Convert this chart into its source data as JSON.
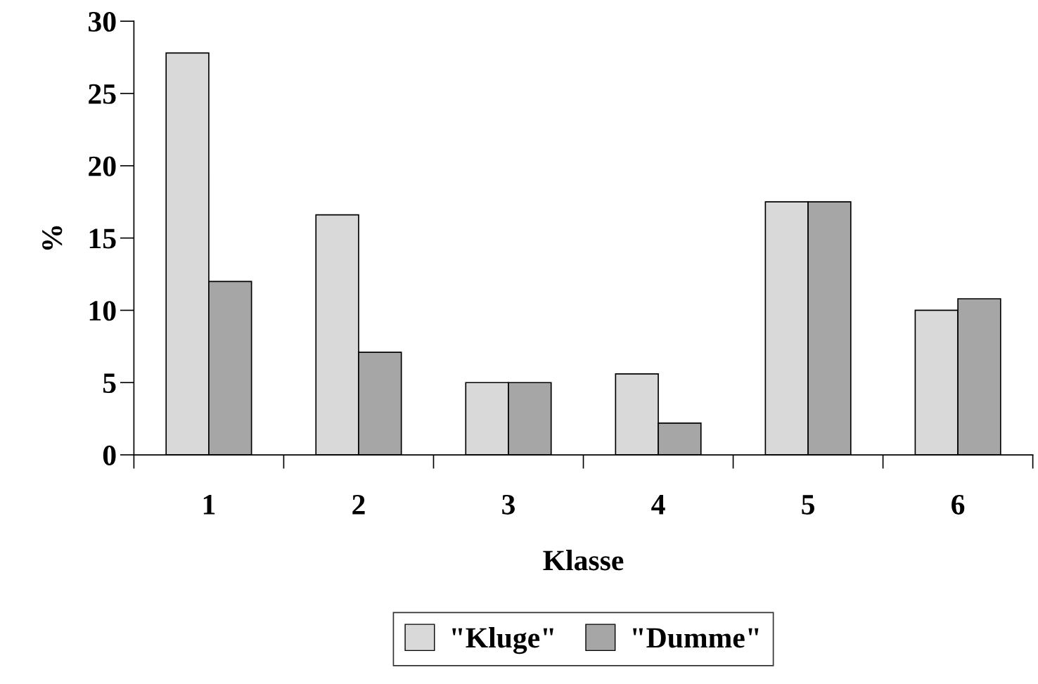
{
  "chart_data": {
    "type": "bar",
    "xlabel": "Klasse",
    "ylabel": "%",
    "categories": [
      "1",
      "2",
      "3",
      "4",
      "5",
      "6"
    ],
    "series": [
      {
        "name": "\"Kluge\"",
        "color": "#d9d9d9",
        "values": [
          27.8,
          16.6,
          5.0,
          5.6,
          17.5,
          10.0
        ]
      },
      {
        "name": "\"Dumme\"",
        "color": "#a6a6a6",
        "values": [
          12.0,
          7.1,
          5.0,
          2.2,
          17.5,
          10.8
        ]
      }
    ],
    "ylim": [
      0,
      30
    ],
    "yticks": [
      0,
      5,
      10,
      15,
      20,
      25,
      30
    ],
    "grid": false,
    "legend": "bottom"
  }
}
